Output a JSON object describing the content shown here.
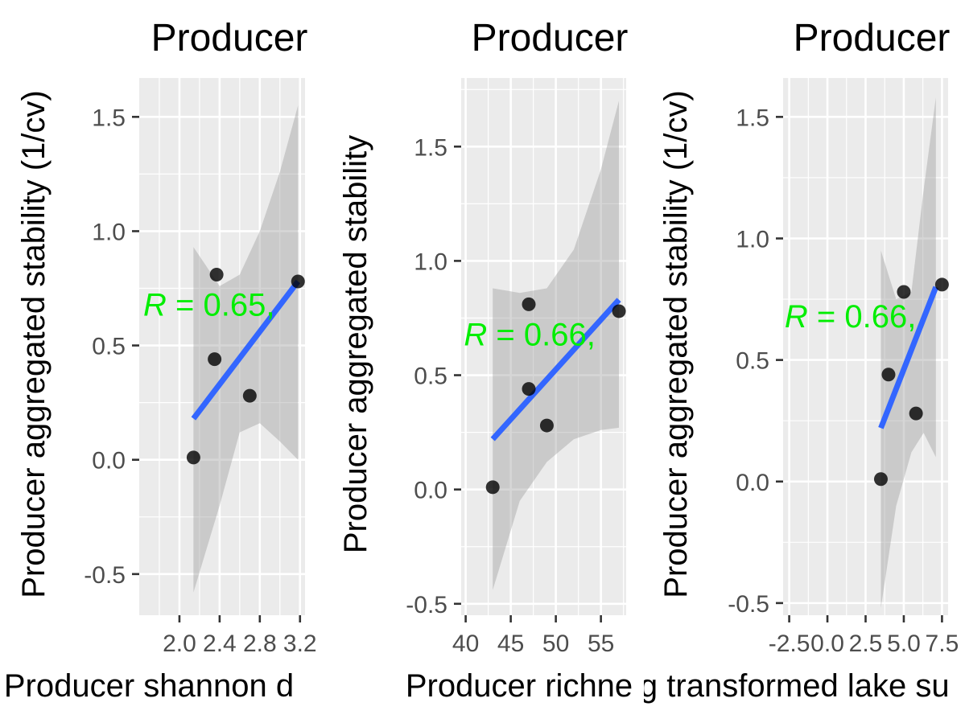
{
  "chart_data": [
    {
      "type": "scatter",
      "title": "Producer",
      "xlabel": "Producer shannon d",
      "ylabel": "Producer aggregated stability (1/cv)",
      "xlim": [
        1.6,
        3.25
      ],
      "ylim": [
        -0.68,
        1.67
      ],
      "x_ticks": [
        2.0,
        2.4,
        2.8,
        3.2
      ],
      "x_tick_labels": [
        "2.0",
        "2.4",
        "2.8",
        "3.2"
      ],
      "y_ticks": [
        -0.5,
        0.0,
        0.5,
        1.0,
        1.5
      ],
      "y_tick_labels": [
        "-0.5",
        "0.0",
        "0.5",
        "1.0",
        "1.5"
      ],
      "points": [
        {
          "x": 2.14,
          "y": 0.01
        },
        {
          "x": 2.35,
          "y": 0.44
        },
        {
          "x": 2.37,
          "y": 0.81
        },
        {
          "x": 2.7,
          "y": 0.28
        },
        {
          "x": 3.18,
          "y": 0.78
        }
      ],
      "fit_line": {
        "x": [
          2.14,
          3.18
        ],
        "y": [
          0.18,
          0.78
        ]
      },
      "conf_band": {
        "x": [
          2.14,
          2.4,
          2.6,
          2.8,
          3.0,
          3.18
        ],
        "upper": [
          0.93,
          0.76,
          0.81,
          1.0,
          1.26,
          1.55
        ],
        "lower": [
          -0.58,
          -0.2,
          0.12,
          0.16,
          0.08,
          0.0
        ]
      },
      "annotation": {
        "italic": "R",
        "text": " = 0.65, ",
        "x": 1.64,
        "y": 0.68
      }
    },
    {
      "type": "scatter",
      "title": "Producer",
      "xlabel": "Producer richne",
      "ylabel": "Producer aggregated stability",
      "xlim": [
        39.5,
        57.8
      ],
      "ylim": [
        -0.55,
        1.8
      ],
      "x_ticks": [
        40,
        45,
        50,
        55
      ],
      "x_tick_labels": [
        "40",
        "45",
        "50",
        "55"
      ],
      "y_ticks": [
        -0.5,
        0.0,
        0.5,
        1.0,
        1.5
      ],
      "y_tick_labels": [
        "-0.5",
        "0.0",
        "0.5",
        "1.0",
        "1.5"
      ],
      "points": [
        {
          "x": 43,
          "y": 0.01
        },
        {
          "x": 47,
          "y": 0.44
        },
        {
          "x": 47,
          "y": 0.81
        },
        {
          "x": 49,
          "y": 0.28
        },
        {
          "x": 57,
          "y": 0.78
        }
      ],
      "fit_line": {
        "x": [
          43,
          57
        ],
        "y": [
          0.22,
          0.83
        ]
      },
      "conf_band": {
        "x": [
          43,
          46,
          49,
          52,
          55,
          57
        ],
        "upper": [
          0.88,
          0.86,
          0.88,
          1.05,
          1.4,
          1.7
        ],
        "lower": [
          -0.44,
          -0.05,
          0.12,
          0.22,
          0.26,
          0.27
        ]
      },
      "annotation": {
        "italic": "R",
        "text": " = 0.66, ",
        "x": 39.8,
        "y": 0.68
      }
    },
    {
      "type": "scatter",
      "title": "Producer",
      "xlabel": "Log transformed lake su",
      "ylabel": "Producer aggregated stability (1/cv)",
      "xlim": [
        -2.9,
        7.9
      ],
      "ylim": [
        -0.55,
        1.66
      ],
      "x_ticks": [
        -2.5,
        0.0,
        2.5,
        5.0,
        7.5
      ],
      "x_tick_labels": [
        "-2.5",
        "0.0",
        "2.5",
        "5.0",
        "7.5"
      ],
      "y_ticks": [
        -0.5,
        0.0,
        0.5,
        1.0,
        1.5
      ],
      "y_tick_labels": [
        "-0.5",
        "0.0",
        "0.5",
        "1.0",
        "1.5"
      ],
      "points": [
        {
          "x": 3.5,
          "y": 0.01
        },
        {
          "x": 4.0,
          "y": 0.44
        },
        {
          "x": 5.0,
          "y": 0.78
        },
        {
          "x": 5.8,
          "y": 0.28
        },
        {
          "x": 7.5,
          "y": 0.81
        }
      ],
      "fit_line": {
        "x": [
          3.5,
          7.1
        ],
        "y": [
          0.22,
          0.8
        ]
      },
      "conf_band": {
        "x": [
          3.5,
          4.5,
          5.5,
          6.3,
          7.1
        ],
        "upper": [
          0.95,
          0.75,
          0.78,
          1.2,
          1.58
        ],
        "lower": [
          -0.52,
          -0.1,
          0.12,
          0.2,
          0.1
        ]
      },
      "annotation": {
        "italic": "R",
        "text": " = 0.66, ",
        "x": -2.8,
        "y": 0.68
      }
    }
  ]
}
